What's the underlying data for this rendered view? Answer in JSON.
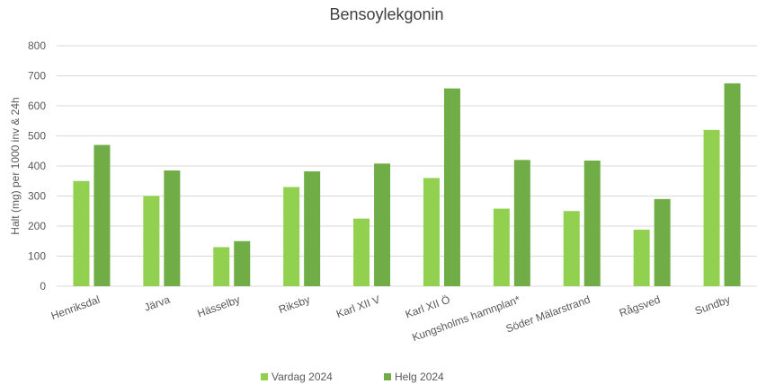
{
  "chart_data": {
    "type": "bar",
    "title": "Bensoylekgonin",
    "y_label": "Halt (mg) per 1000 inv & 24h",
    "categories": [
      "Henriksdal",
      "Järva",
      "Hässelby",
      "Riksby",
      "Karl XII V",
      "Karl XII Ö",
      "Kungsholms hamnplan*",
      "Söder Mälarstrand",
      "Rågsved",
      "Sundby"
    ],
    "series": [
      {
        "name": "Vardag 2024",
        "color": "#92d050",
        "values": [
          350,
          300,
          130,
          330,
          225,
          360,
          258,
          250,
          188,
          520
        ]
      },
      {
        "name": "Helg 2024",
        "color": "#70ad47",
        "values": [
          470,
          385,
          150,
          382,
          408,
          658,
          420,
          418,
          290,
          675
        ]
      }
    ],
    "ylim": [
      0,
      800
    ],
    "yticks": [
      0,
      100,
      200,
      300,
      400,
      500,
      600,
      700,
      800
    ],
    "grid": true,
    "legend": "bottom"
  }
}
